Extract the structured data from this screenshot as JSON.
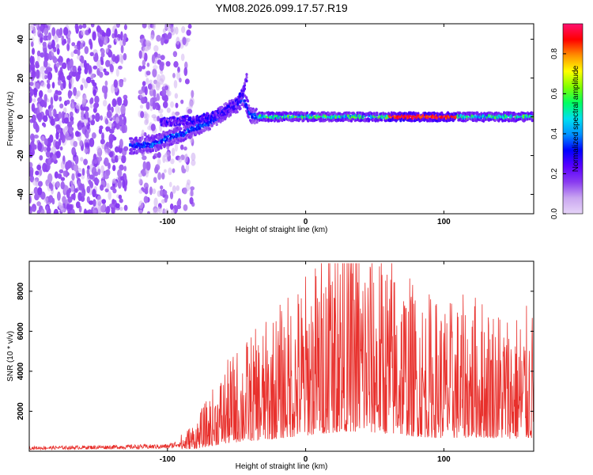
{
  "figure": {
    "title": "YM08.2026.099.17.57.R19"
  },
  "chart_data": [
    {
      "type": "heatmap",
      "xlabel": "Height of straight line (km)",
      "ylabel": "Frequency (Hz)",
      "xlim": [
        -200,
        165
      ],
      "ylim": [
        -50,
        48
      ],
      "xticks": [
        -100,
        0,
        100
      ],
      "yticks": [
        -40,
        -20,
        0,
        20,
        40
      ],
      "grid": false,
      "colorbar": {
        "label": "Normalized spectral amplitude",
        "ticks": [
          0.0,
          0.2,
          0.4,
          0.6,
          0.8
        ],
        "range": [
          0,
          0.95
        ],
        "colormap": [
          "#e6d4f8",
          "#c9a6f0",
          "#8a3cf0",
          "#5a00ff",
          "#0000ff",
          "#0090ff",
          "#00e0f0",
          "#00ff60",
          "#80ff00",
          "#ffff00",
          "#ff9000",
          "#ff0000",
          "#ff1070"
        ]
      },
      "ridge": {
        "height_km": [
          -125,
          -110,
          -100,
          -90,
          -80,
          -70,
          -60,
          -50,
          -45,
          -40,
          -35,
          -20,
          0,
          20,
          40,
          60,
          80,
          100,
          120,
          140,
          165
        ],
        "frequency_hz": [
          -15,
          -14,
          -11,
          -9,
          -6,
          -3,
          2,
          6,
          10,
          1,
          0,
          0,
          0,
          0,
          0,
          0,
          0,
          0,
          0,
          0,
          0
        ]
      },
      "secondary_ridge": {
        "height_km": [
          -105,
          -90,
          -75,
          -60,
          -50,
          -45,
          -42
        ],
        "frequency_hz": [
          -3,
          -2,
          -1,
          2,
          7,
          13,
          22
        ]
      }
    },
    {
      "type": "line",
      "xlabel": "Height of straight line (km)",
      "ylabel": "SNR (10 * v/v)",
      "xlim": [
        -200,
        165
      ],
      "ylim": [
        0,
        9500
      ],
      "xticks": [
        -100,
        0,
        100
      ],
      "yticks": [
        2000,
        4000,
        6000,
        8000
      ],
      "grid": false,
      "series": [
        {
          "color": "#e8302c",
          "envelope_x": [
            -200,
            -150,
            -100,
            -90,
            -80,
            -70,
            -60,
            -50,
            -40,
            -30,
            -20,
            -10,
            0,
            10,
            20,
            30,
            40,
            50,
            60,
            70,
            80,
            90,
            100,
            110,
            120,
            130,
            140,
            150,
            165
          ],
          "envelope_y": [
            200,
            250,
            300,
            500,
            900,
            1600,
            2400,
            3000,
            3400,
            3700,
            4200,
            4700,
            5200,
            5700,
            6200,
            6600,
            6400,
            6100,
            5800,
            5400,
            4800,
            4600,
            4400,
            4400,
            4600,
            4500,
            4300,
            4100,
            4200
          ],
          "peak_y": 9400
        }
      ]
    }
  ]
}
